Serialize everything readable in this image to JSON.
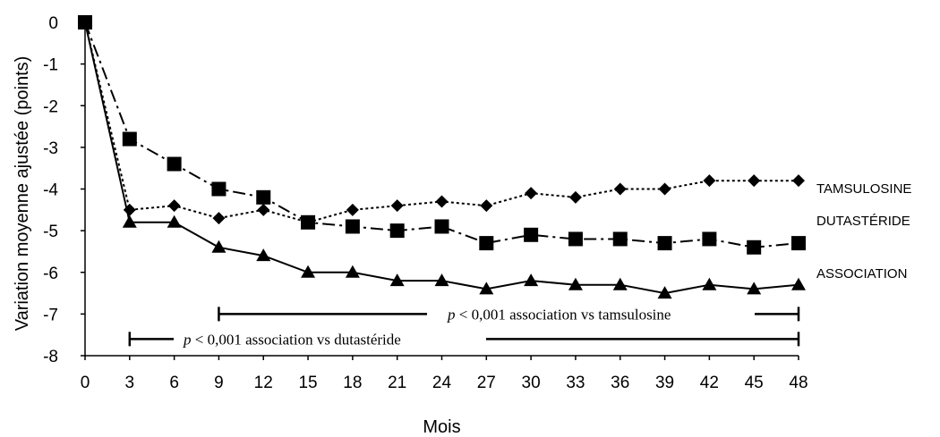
{
  "chart_data": {
    "type": "line",
    "xlabel": "Mois",
    "ylabel": "Variation moyenne ajustée (points)",
    "xlim": [
      0,
      48
    ],
    "ylim": [
      -8,
      0
    ],
    "x_ticks": [
      0,
      3,
      6,
      9,
      12,
      15,
      18,
      21,
      24,
      27,
      30,
      33,
      36,
      39,
      42,
      45,
      48
    ],
    "y_ticks": [
      0,
      -1,
      -2,
      -3,
      -4,
      -5,
      -6,
      -7,
      -8
    ],
    "grid": false,
    "series": [
      {
        "name": "TAMSULOSINE",
        "marker": "diamond",
        "line_style": "dotted",
        "x": [
          0,
          3,
          6,
          9,
          12,
          15,
          18,
          21,
          24,
          27,
          30,
          33,
          36,
          39,
          42,
          45,
          48
        ],
        "values": [
          0,
          -4.5,
          -4.4,
          -4.7,
          -4.5,
          -4.8,
          -4.5,
          -4.4,
          -4.3,
          -4.4,
          -4.1,
          -4.2,
          -4.0,
          -4.0,
          -3.8,
          -3.8,
          -3.8
        ]
      },
      {
        "name": "DUTASTÉRIDE",
        "marker": "square",
        "line_style": "dash-dot",
        "x": [
          0,
          3,
          6,
          9,
          12,
          15,
          18,
          21,
          24,
          27,
          30,
          33,
          36,
          39,
          42,
          45,
          48
        ],
        "values": [
          0,
          -2.8,
          -3.4,
          -4.0,
          -4.2,
          -4.8,
          -4.9,
          -5.0,
          -4.9,
          -5.3,
          -5.1,
          -5.2,
          -5.2,
          -5.3,
          -5.2,
          -5.4,
          -5.3
        ]
      },
      {
        "name": "ASSOCIATION",
        "marker": "triangle",
        "line_style": "solid",
        "x": [
          0,
          3,
          6,
          9,
          12,
          15,
          18,
          21,
          24,
          27,
          30,
          33,
          36,
          39,
          42,
          45,
          48
        ],
        "values": [
          0,
          -4.8,
          -4.8,
          -5.4,
          -5.6,
          -6.0,
          -6.0,
          -6.2,
          -6.2,
          -6.4,
          -6.2,
          -6.3,
          -6.3,
          -6.5,
          -6.3,
          -6.4,
          -6.3
        ]
      }
    ],
    "annotations": [
      {
        "p": "p",
        "text": " < 0,001 association vs tamsulosine",
        "x_start": 9,
        "x_end": 48,
        "y": -7
      },
      {
        "p": "p",
        "text": " < 0,001 association vs dutastéride",
        "x_start": 3,
        "x_end": 48,
        "y": -7.6
      }
    ]
  }
}
